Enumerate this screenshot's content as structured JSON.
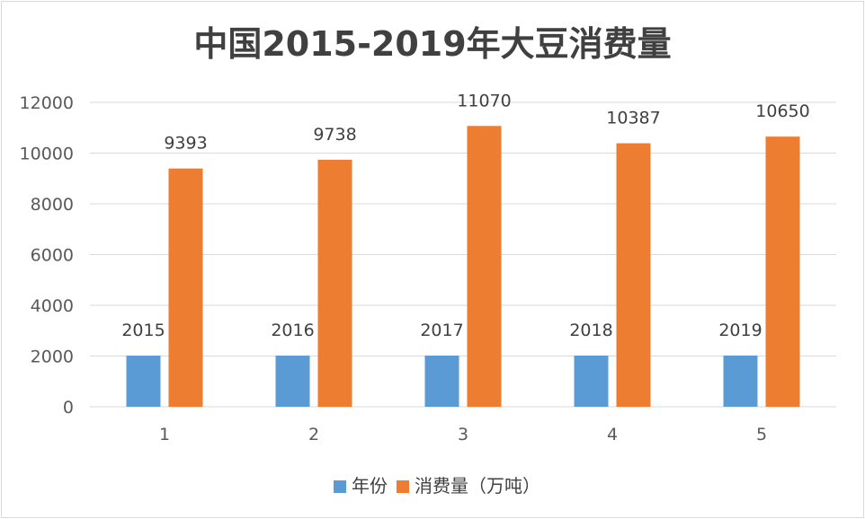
{
  "chart_data": {
    "type": "bar",
    "title": "中国2015-2019年大豆消费量",
    "categories": [
      "1",
      "2",
      "3",
      "4",
      "5"
    ],
    "series": [
      {
        "name": "年份",
        "color": "#5b9bd5",
        "values": [
          2015,
          2016,
          2017,
          2018,
          2019
        ]
      },
      {
        "name": "消费量（万吨）",
        "color": "#ed7d31",
        "values": [
          9393,
          9738,
          11070,
          10387,
          10650
        ]
      }
    ],
    "ylim": [
      0,
      12000
    ],
    "yticks": [
      0,
      2000,
      4000,
      6000,
      8000,
      10000,
      12000
    ],
    "grid": true,
    "data_labels": true,
    "legend": "bottom"
  }
}
